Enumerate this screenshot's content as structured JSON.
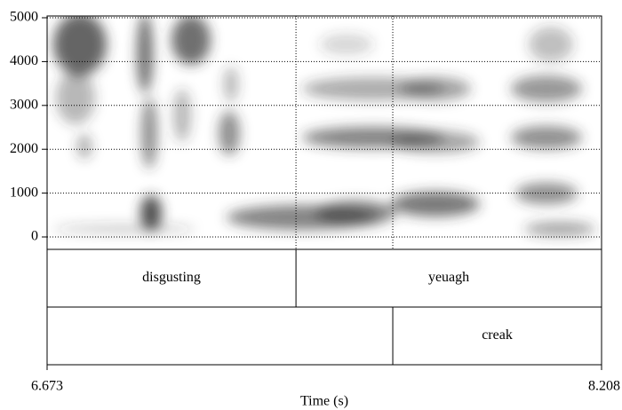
{
  "chart_data": {
    "type": "spectrogram",
    "ylim": [
      0,
      5000
    ],
    "yticks": [
      0,
      1000,
      2000,
      3000,
      4000,
      5000
    ],
    "grid": true,
    "xlim": [
      6.673,
      8.208
    ],
    "xticks": [
      6.673,
      8.208
    ],
    "x_label": "Time (s)",
    "tiers": [
      {
        "boundaries": [
          7.362
        ],
        "labels": [
          "disgusting",
          "yeuagh"
        ]
      },
      {
        "boundaries": [
          7.63
        ],
        "labels": [
          null,
          "creak"
        ]
      }
    ]
  }
}
